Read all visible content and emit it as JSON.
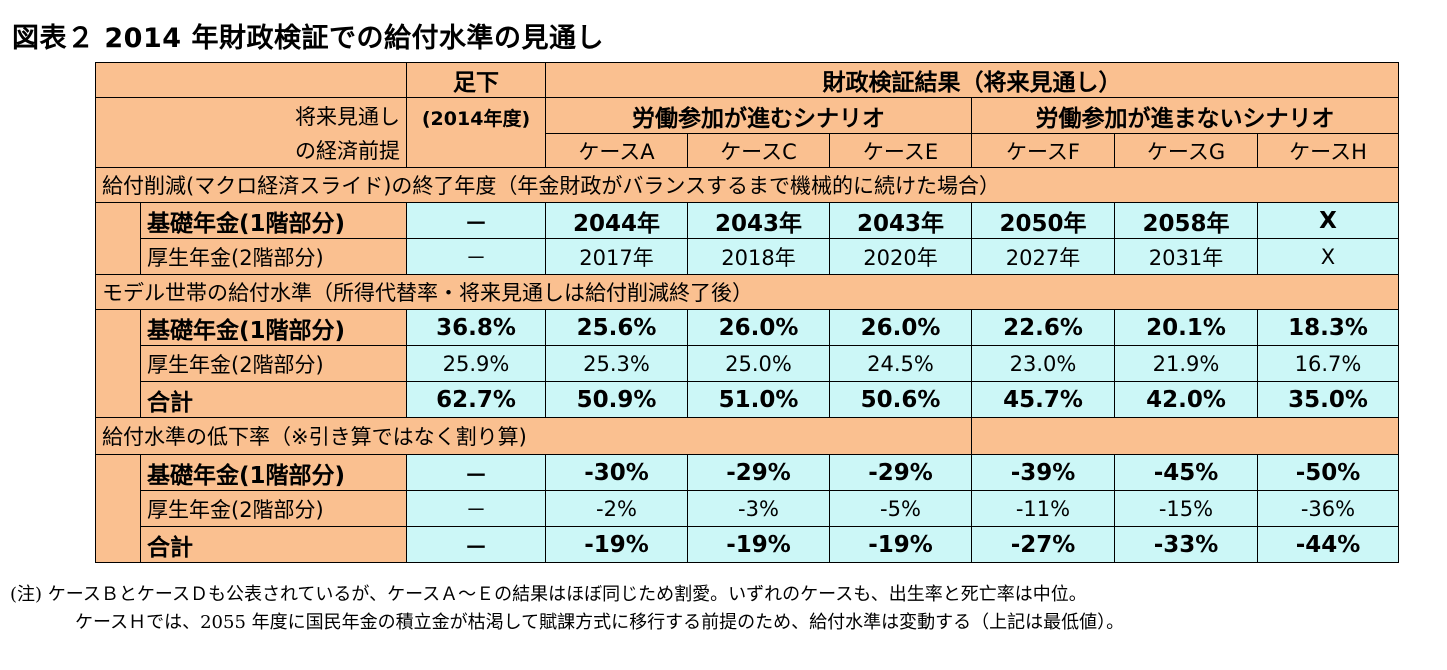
{
  "title": "図表２ 2014 年財政検証での給付水準の見通し",
  "header": {
    "current": "足下",
    "current_year": "(2014年度)",
    "results": "財政検証結果（将来見通し）",
    "row_label_1": "将来見通し",
    "row_label_2": "の経済前提",
    "scenario_a": "労働参加が進むシナリオ",
    "scenario_b": "労働参加が進まないシナリオ",
    "cases": [
      "ケースA",
      "ケースC",
      "ケースE",
      "ケースF",
      "ケースG",
      "ケースH"
    ]
  },
  "sections": [
    {
      "heading": "給付削減(マクロ経済スライド)の終了年度（年金財政がバランスするまで機械的に続けた場合）",
      "rows": [
        {
          "label": "基礎年金(1階部分)",
          "bold": true,
          "values": [
            "－",
            "2044年",
            "2043年",
            "2043年",
            "2050年",
            "2058年",
            "X"
          ]
        },
        {
          "label": "厚生年金(2階部分)",
          "bold": false,
          "values": [
            "－",
            "2017年",
            "2018年",
            "2020年",
            "2027年",
            "2031年",
            "X"
          ]
        }
      ]
    },
    {
      "heading": "モデル世帯の給付水準（所得代替率・将来見通しは給付削減終了後）",
      "rows": [
        {
          "label": "基礎年金(1階部分)",
          "bold": true,
          "values": [
            "36.8%",
            "25.6%",
            "26.0%",
            "26.0%",
            "22.6%",
            "20.1%",
            "18.3%"
          ]
        },
        {
          "label": "厚生年金(2階部分)",
          "bold": false,
          "values": [
            "25.9%",
            "25.3%",
            "25.0%",
            "24.5%",
            "23.0%",
            "21.9%",
            "16.7%"
          ]
        },
        {
          "label": "合計",
          "bold": true,
          "values": [
            "62.7%",
            "50.9%",
            "51.0%",
            "50.6%",
            "45.7%",
            "42.0%",
            "35.0%"
          ]
        }
      ]
    },
    {
      "heading": "給付水準の低下率（※引き算ではなく割り算)",
      "rows": [
        {
          "label": "基礎年金(1階部分)",
          "bold": true,
          "values": [
            "－",
            "-30%",
            "-29%",
            "-29%",
            "-39%",
            "-45%",
            "-50%"
          ]
        },
        {
          "label": "厚生年金(2階部分)",
          "bold": false,
          "values": [
            "－",
            "-2%",
            "-3%",
            "-5%",
            "-11%",
            "-15%",
            "-36%"
          ]
        },
        {
          "label": "合計",
          "bold": true,
          "values": [
            "－",
            "-19%",
            "-19%",
            "-19%",
            "-27%",
            "-33%",
            "-44%"
          ]
        }
      ]
    }
  ],
  "notes": [
    "(注) ケースＢとケースＤも公表されているが、ケースＡ～Ｅの結果はほぼ同じため割愛。いずれのケースも、出生率と死亡率は中位。",
    "ケースＨでは、2055 年度に国民年金の積立金が枯渇して賦課方式に移行する前提のため、給付水準は変動する（上記は最低値）。"
  ],
  "colors": {
    "header_fill": "#FAC090",
    "value_fill": "#CCF7F7"
  }
}
